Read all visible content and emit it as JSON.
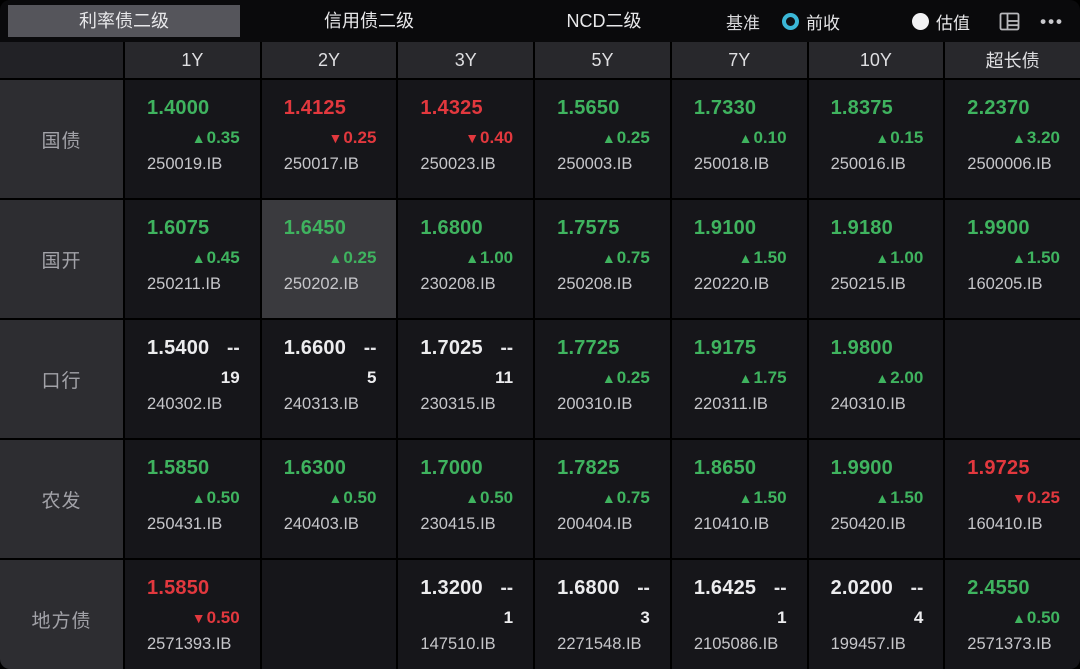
{
  "tabs": [
    {
      "key": "rate-bond",
      "label": "利率债二级",
      "active": true
    },
    {
      "key": "credit-bond",
      "label": "信用债二级",
      "active": false
    },
    {
      "key": "ncd",
      "label": "NCD二级",
      "active": false
    }
  ],
  "benchmark": {
    "label": "基准",
    "options": [
      {
        "key": "prev-close",
        "label": "前收",
        "selected": true
      },
      {
        "key": "valuation",
        "label": "估值",
        "selected": false
      }
    ]
  },
  "glyphs": {
    "up": "▲",
    "down": "▼",
    "dash": "--",
    "more": "•••"
  },
  "colors": {
    "up_green": "#3fb35f",
    "down_red": "#e2383e",
    "radio_active": "#3bb7d7"
  },
  "columns": [
    {
      "key": "1y",
      "label": "1Y"
    },
    {
      "key": "2y",
      "label": "2Y"
    },
    {
      "key": "3y",
      "label": "3Y"
    },
    {
      "key": "5y",
      "label": "5Y"
    },
    {
      "key": "7y",
      "label": "7Y"
    },
    {
      "key": "10y",
      "label": "10Y"
    },
    {
      "key": "ultra-long",
      "label": "超长债"
    }
  ],
  "rows": [
    {
      "key": "treasury",
      "label": "国债",
      "cells": [
        {
          "type": "change",
          "price": "1.4000",
          "dir": "up",
          "change": "0.35",
          "code": "250019.IB"
        },
        {
          "type": "change",
          "price": "1.4125",
          "dir": "down",
          "change": "0.25",
          "code": "250017.IB"
        },
        {
          "type": "change",
          "price": "1.4325",
          "dir": "down",
          "change": "0.40",
          "code": "250023.IB"
        },
        {
          "type": "change",
          "price": "1.5650",
          "dir": "up",
          "change": "0.25",
          "code": "250003.IB"
        },
        {
          "type": "change",
          "price": "1.7330",
          "dir": "up",
          "change": "0.10",
          "code": "250018.IB"
        },
        {
          "type": "change",
          "price": "1.8375",
          "dir": "up",
          "change": "0.15",
          "code": "250016.IB"
        },
        {
          "type": "change",
          "price": "2.2370",
          "dir": "up",
          "change": "3.20",
          "code": "2500006.IB"
        }
      ]
    },
    {
      "key": "cdb",
      "label": "国开",
      "cells": [
        {
          "type": "change",
          "price": "1.6075",
          "dir": "up",
          "change": "0.45",
          "code": "250211.IB"
        },
        {
          "type": "change",
          "price": "1.6450",
          "dir": "up",
          "change": "0.25",
          "code": "250202.IB",
          "selected": true
        },
        {
          "type": "change",
          "price": "1.6800",
          "dir": "up",
          "change": "1.00",
          "code": "230208.IB"
        },
        {
          "type": "change",
          "price": "1.7575",
          "dir": "up",
          "change": "0.75",
          "code": "250208.IB"
        },
        {
          "type": "change",
          "price": "1.9100",
          "dir": "up",
          "change": "1.50",
          "code": "220220.IB"
        },
        {
          "type": "change",
          "price": "1.9180",
          "dir": "up",
          "change": "1.00",
          "code": "250215.IB"
        },
        {
          "type": "change",
          "price": "1.9900",
          "dir": "up",
          "change": "1.50",
          "code": "160205.IB"
        }
      ]
    },
    {
      "key": "exim",
      "label": "口行",
      "cells": [
        {
          "type": "quote",
          "price": "1.5400",
          "count": "19",
          "code": "240302.IB"
        },
        {
          "type": "quote",
          "price": "1.6600",
          "count": "5",
          "code": "240313.IB"
        },
        {
          "type": "quote",
          "price": "1.7025",
          "count": "11",
          "code": "230315.IB"
        },
        {
          "type": "change",
          "price": "1.7725",
          "dir": "up",
          "change": "0.25",
          "code": "200310.IB"
        },
        {
          "type": "change",
          "price": "1.9175",
          "dir": "up",
          "change": "1.75",
          "code": "220311.IB"
        },
        {
          "type": "change",
          "price": "1.9800",
          "dir": "up",
          "change": "2.00",
          "code": "240310.IB"
        },
        {
          "type": "empty"
        }
      ]
    },
    {
      "key": "adbc",
      "label": "农发",
      "cells": [
        {
          "type": "change",
          "price": "1.5850",
          "dir": "up",
          "change": "0.50",
          "code": "250431.IB"
        },
        {
          "type": "change",
          "price": "1.6300",
          "dir": "up",
          "change": "0.50",
          "code": "240403.IB"
        },
        {
          "type": "change",
          "price": "1.7000",
          "dir": "up",
          "change": "0.50",
          "code": "230415.IB"
        },
        {
          "type": "change",
          "price": "1.7825",
          "dir": "up",
          "change": "0.75",
          "code": "200404.IB"
        },
        {
          "type": "change",
          "price": "1.8650",
          "dir": "up",
          "change": "1.50",
          "code": "210410.IB"
        },
        {
          "type": "change",
          "price": "1.9900",
          "dir": "up",
          "change": "1.50",
          "code": "250420.IB"
        },
        {
          "type": "change",
          "price": "1.9725",
          "dir": "down",
          "change": "0.25",
          "code": "160410.IB"
        }
      ]
    },
    {
      "key": "local",
      "label": "地方债",
      "cells": [
        {
          "type": "change",
          "price": "1.5850",
          "dir": "down",
          "change": "0.50",
          "code": "2571393.IB"
        },
        {
          "type": "empty"
        },
        {
          "type": "quote",
          "price": "1.3200",
          "count": "1",
          "code": "147510.IB"
        },
        {
          "type": "quote",
          "price": "1.6800",
          "count": "3",
          "code": "2271548.IB"
        },
        {
          "type": "quote",
          "price": "1.6425",
          "count": "1",
          "code": "2105086.IB"
        },
        {
          "type": "quote",
          "price": "2.0200",
          "count": "4",
          "code": "199457.IB"
        },
        {
          "type": "change",
          "price": "2.4550",
          "dir": "up",
          "change": "0.50",
          "code": "2571373.IB"
        }
      ]
    }
  ]
}
